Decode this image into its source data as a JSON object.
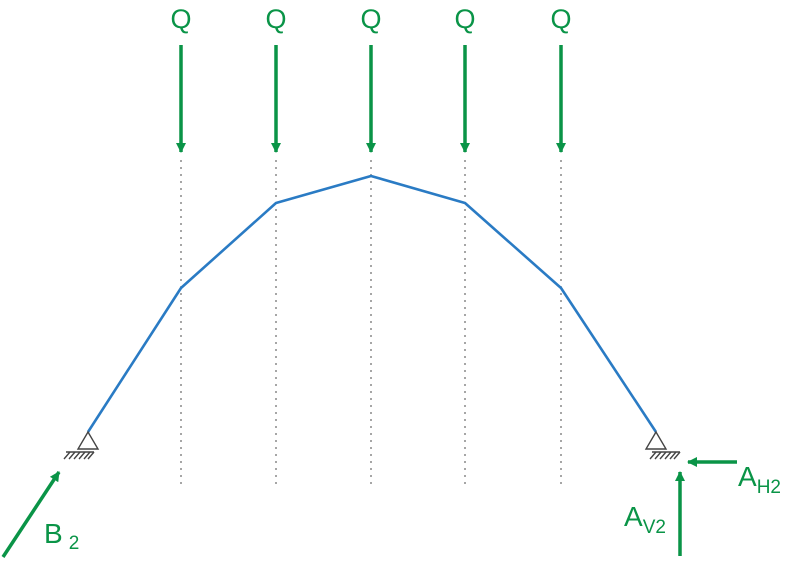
{
  "colors": {
    "force": "#0a9447",
    "structure": "#2a7bc4",
    "support": "#444444",
    "guide": "#777777"
  },
  "loads": [
    {
      "label": "Q"
    },
    {
      "label": "Q"
    },
    {
      "label": "Q"
    },
    {
      "label": "Q"
    },
    {
      "label": "Q"
    }
  ],
  "reactions": {
    "b": {
      "main": "B",
      "sub": "2"
    },
    "av": {
      "main": "A",
      "sub": "V2"
    },
    "ah": {
      "main": "A",
      "sub": "H2"
    }
  },
  "icons": {
    "left_support": "pin-support-icon",
    "right_support": "pin-support-icon"
  }
}
